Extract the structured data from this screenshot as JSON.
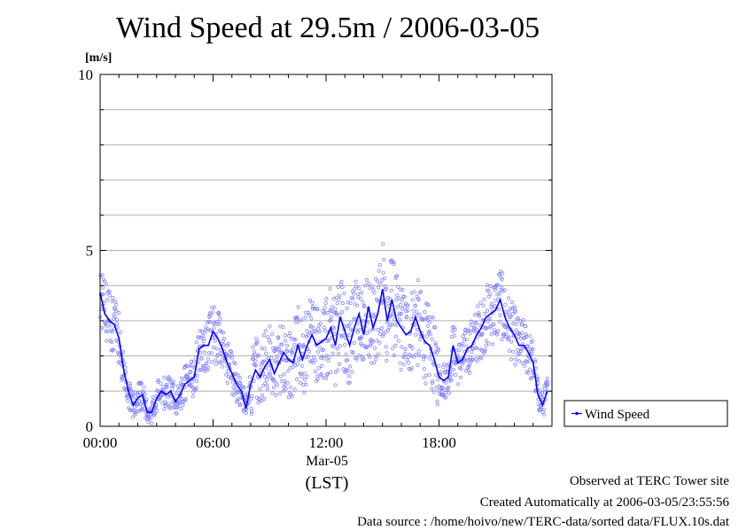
{
  "chart_data": {
    "type": "scatter",
    "title": "Wind Speed at 29.5m / 2006-03-05",
    "ylabel": "[m/s]",
    "xlabel": "(LST)",
    "date_label": "Mar-05",
    "ylim": [
      0,
      10
    ],
    "xlim_hours": [
      0,
      24
    ],
    "x_ticks": [
      "00:00",
      "06:00",
      "12:00",
      "18:00"
    ],
    "y_ticks": [
      "0",
      "5",
      "10"
    ],
    "grid": true,
    "legend_position": "right",
    "series": [
      {
        "name": "Wind Speed",
        "color": "#0000ff",
        "hours": [
          0.0,
          0.25,
          0.5,
          0.75,
          1.0,
          1.25,
          1.5,
          1.75,
          2.0,
          2.25,
          2.5,
          2.75,
          3.0,
          3.25,
          3.5,
          3.75,
          4.0,
          4.25,
          4.5,
          4.75,
          5.0,
          5.25,
          5.5,
          5.75,
          6.0,
          6.25,
          6.5,
          6.75,
          7.0,
          7.25,
          7.5,
          7.75,
          8.0,
          8.25,
          8.5,
          8.75,
          9.0,
          9.25,
          9.5,
          9.75,
          10.0,
          10.25,
          10.5,
          10.75,
          11.0,
          11.25,
          11.5,
          11.75,
          12.0,
          12.25,
          12.5,
          12.75,
          13.0,
          13.25,
          13.5,
          13.75,
          14.0,
          14.25,
          14.5,
          14.75,
          15.0,
          15.25,
          15.5,
          15.75,
          16.0,
          16.25,
          16.5,
          16.75,
          17.0,
          17.25,
          17.5,
          17.75,
          18.0,
          18.25,
          18.5,
          18.75,
          19.0,
          19.25,
          19.5,
          19.75,
          20.0,
          20.25,
          20.5,
          20.75,
          21.0,
          21.25,
          21.5,
          21.75,
          22.0,
          22.25,
          22.5,
          22.75,
          23.0,
          23.25,
          23.5,
          23.75
        ],
        "values": [
          3.8,
          3.2,
          3.0,
          2.9,
          2.5,
          1.6,
          1.0,
          0.6,
          0.8,
          0.9,
          0.4,
          0.4,
          0.8,
          1.0,
          0.9,
          1.0,
          0.7,
          0.9,
          1.2,
          1.3,
          1.4,
          2.2,
          2.3,
          2.3,
          2.7,
          2.5,
          2.2,
          1.8,
          1.5,
          1.2,
          1.0,
          0.5,
          1.2,
          1.6,
          1.4,
          1.7,
          1.9,
          1.5,
          1.8,
          2.1,
          1.9,
          1.8,
          2.3,
          1.9,
          2.3,
          2.6,
          2.3,
          2.4,
          2.5,
          2.8,
          2.3,
          3.1,
          2.7,
          2.3,
          2.8,
          3.2,
          2.6,
          3.4,
          2.8,
          3.2,
          3.9,
          3.0,
          3.6,
          3.0,
          2.8,
          2.6,
          2.7,
          3.1,
          2.7,
          2.4,
          2.3,
          1.9,
          1.4,
          1.3,
          1.4,
          2.3,
          1.8,
          1.9,
          2.2,
          2.3,
          2.6,
          2.8,
          3.1,
          3.2,
          3.3,
          3.6,
          3.1,
          2.8,
          2.6,
          2.3,
          2.3,
          2.1,
          1.8,
          0.9,
          0.6,
          1.0
        ]
      }
    ]
  },
  "footer": {
    "line1": "Observed at TERC Tower site",
    "line2": "Created Automatically at 2006-03-05/23:55:56",
    "line3": "Data source : /home/hoivo/new/TERC-data/sorted  data/FLUX.10s.dat"
  }
}
